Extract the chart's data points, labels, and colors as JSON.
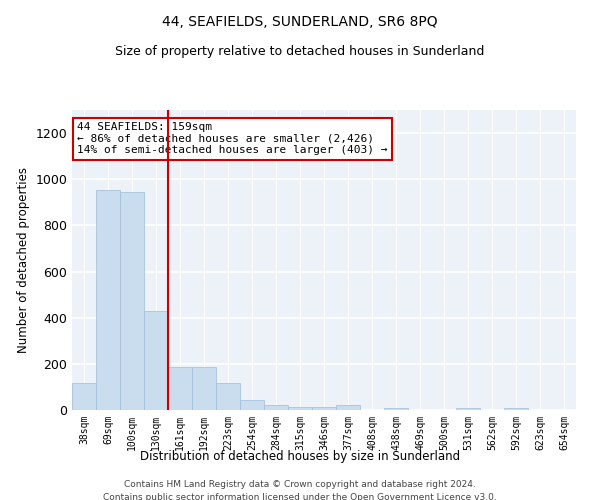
{
  "title": "44, SEAFIELDS, SUNDERLAND, SR6 8PQ",
  "subtitle": "Size of property relative to detached houses in Sunderland",
  "xlabel": "Distribution of detached houses by size in Sunderland",
  "ylabel": "Number of detached properties",
  "bar_color": "#c9ddef",
  "bar_edge_color": "#a0bdd8",
  "vline_color": "#cc0000",
  "categories": [
    "38sqm",
    "69sqm",
    "100sqm",
    "130sqm",
    "161sqm",
    "192sqm",
    "223sqm",
    "254sqm",
    "284sqm",
    "315sqm",
    "346sqm",
    "377sqm",
    "408sqm",
    "438sqm",
    "469sqm",
    "500sqm",
    "531sqm",
    "562sqm",
    "592sqm",
    "623sqm",
    "654sqm"
  ],
  "values": [
    115,
    955,
    945,
    430,
    185,
    185,
    115,
    45,
    20,
    15,
    15,
    20,
    0,
    10,
    0,
    0,
    10,
    0,
    10,
    0,
    0
  ],
  "ylim": [
    0,
    1300
  ],
  "yticks": [
    0,
    200,
    400,
    600,
    800,
    1000,
    1200
  ],
  "annotation_text": "44 SEAFIELDS: 159sqm\n← 86% of detached houses are smaller (2,426)\n14% of semi-detached houses are larger (403) →",
  "annotation_box_color": "#ffffff",
  "annotation_box_edgecolor": "#cc0000",
  "footer_line1": "Contains HM Land Registry data © Crown copyright and database right 2024.",
  "footer_line2": "Contains public sector information licensed under the Open Government Licence v3.0.",
  "background_color": "#edf2f9",
  "grid_color": "#ffffff",
  "title_fontsize": 10,
  "subtitle_fontsize": 9
}
